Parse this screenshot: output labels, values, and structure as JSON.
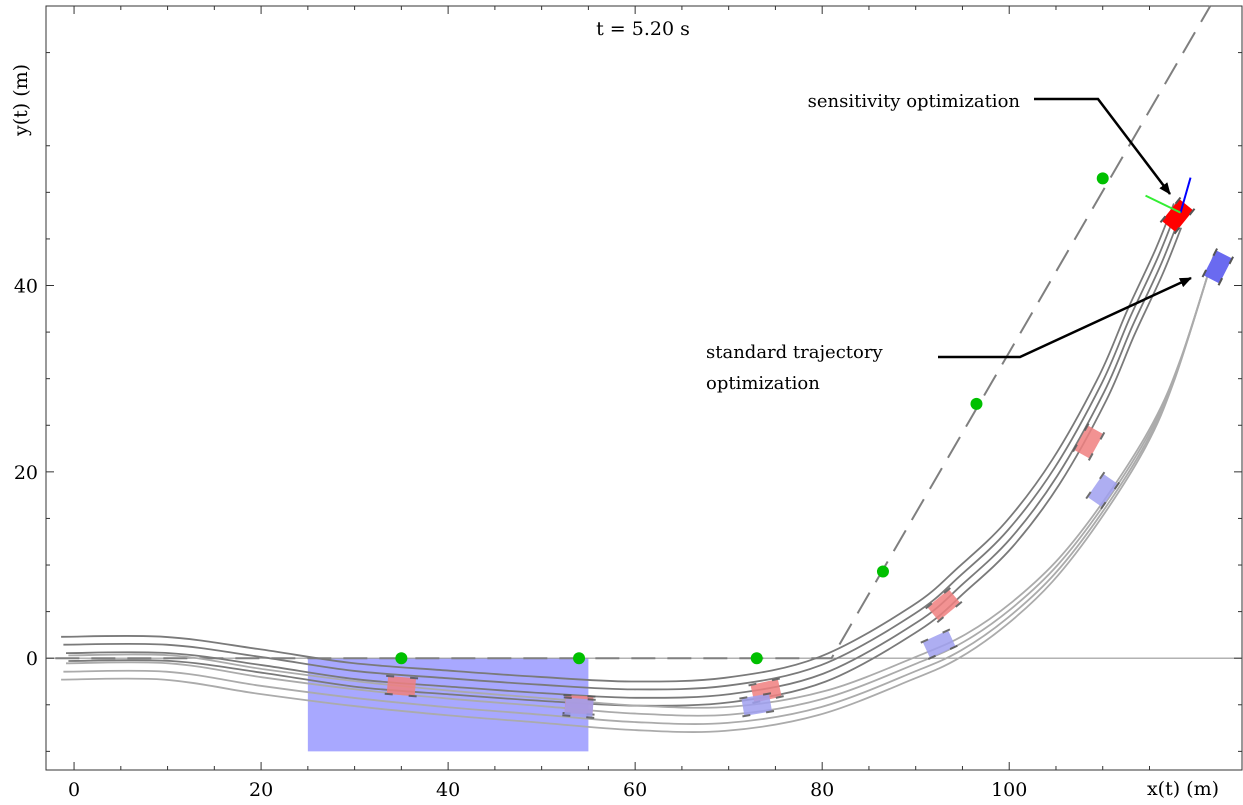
{
  "chart_data": {
    "type": "line",
    "title": "",
    "time_label": "t = 5.20 s",
    "xlabel": "x(t)  (m)",
    "ylabel": "y(t)  (m)",
    "xlim": [
      -3,
      125
    ],
    "ylim": [
      -12,
      70
    ],
    "x_ticks": [
      0,
      20,
      40,
      60,
      80,
      100
    ],
    "x_tick_labels": [
      "0",
      "20",
      "40",
      "60",
      "80",
      "100"
    ],
    "y_ticks": [
      0,
      20,
      40
    ],
    "y_tick_labels": [
      "0",
      "20",
      "40"
    ],
    "grid": false,
    "colors": {
      "sensitivity": "#ff0000",
      "sensitivity_ghost": "#f08080",
      "standard": "#6a6af0",
      "standard_ghost": "#a0a0f0",
      "obstacle": "#a8a8ff",
      "waypoint": "#00c000",
      "path_dark": "#7a7a7a",
      "path_light": "#ababab",
      "reference": "#7f7f7f"
    },
    "obstacle_region": {
      "x": [
        25,
        55
      ],
      "y": [
        -10,
        0
      ]
    },
    "reference_path": {
      "style": "dashed",
      "x": [
        -2,
        81,
        121.5
      ],
      "y": [
        0,
        0,
        70
      ]
    },
    "waypoints": {
      "x": [
        35,
        54,
        73,
        86.5,
        96.5,
        110
      ],
      "y": [
        0,
        0,
        0,
        9.3,
        27.3,
        51.5
      ]
    },
    "series": [
      {
        "name": "sensitivity optimization",
        "x": [
          -1,
          10,
          20,
          30,
          40,
          50,
          60,
          70,
          80,
          90,
          95,
          100,
          105,
          110,
          113,
          116,
          118
        ],
        "y": [
          1,
          1,
          -0.3,
          -1.8,
          -2.6,
          -3.3,
          -3.8,
          -3.4,
          -1.2,
          4.3,
          8.5,
          13.3,
          20,
          29,
          36,
          42.5,
          47.5
        ]
      },
      {
        "name": "standard trajectory optimization",
        "x": [
          -1,
          10,
          20,
          30,
          40,
          50,
          60,
          70,
          80,
          90,
          95,
          100,
          105,
          110,
          115,
          118,
          121.5
        ],
        "y": [
          -1,
          -1,
          -2.5,
          -3.8,
          -4.8,
          -5.6,
          -6.4,
          -6.5,
          -4.8,
          -1,
          1.3,
          4.8,
          9.5,
          16,
          24,
          31,
          42
        ]
      }
    ],
    "vehicle_markers": {
      "sensitivity_ghosts": {
        "x": [
          35,
          54,
          74,
          93,
          108.5
        ],
        "y": [
          -3,
          -5,
          -3.5,
          5.7,
          23.2
        ]
      },
      "standard_ghosts": {
        "x": [
          54,
          73,
          92.5,
          110
        ],
        "y": [
          -5.3,
          -5,
          1.5,
          18
        ]
      },
      "current": [
        {
          "name": "sensitivity optimization",
          "x": [
            118
          ],
          "y": [
            47.5
          ]
        },
        {
          "name": "standard trajectory optimization",
          "x": [
            122.3
          ],
          "y": [
            42
          ]
        }
      ]
    },
    "annotations": [
      {
        "text": "sensitivity optimization",
        "target_x": 118,
        "target_y": 49
      },
      {
        "text": "standard trajectory\noptimization",
        "target_x": 120.5,
        "target_y": 41.2
      }
    ]
  }
}
